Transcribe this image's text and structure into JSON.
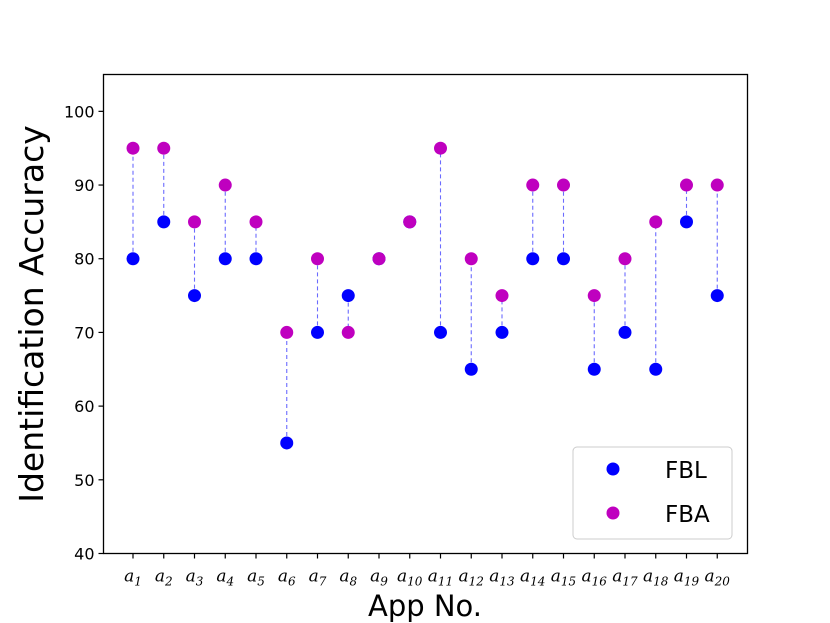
{
  "chart_data": {
    "type": "scatter",
    "xlabel": "App No.",
    "ylabel": "Identification Accuracy",
    "ylim": [
      40,
      105
    ],
    "yticks": [
      40,
      50,
      60,
      70,
      80,
      90,
      100
    ],
    "grid": false,
    "legend_position": "bottom-right",
    "categories": [
      {
        "base": "a",
        "sub": "1"
      },
      {
        "base": "a",
        "sub": "2"
      },
      {
        "base": "a",
        "sub": "3"
      },
      {
        "base": "a",
        "sub": "4"
      },
      {
        "base": "a",
        "sub": "5"
      },
      {
        "base": "a",
        "sub": "6"
      },
      {
        "base": "a",
        "sub": "7"
      },
      {
        "base": "a",
        "sub": "8"
      },
      {
        "base": "a",
        "sub": "9"
      },
      {
        "base": "a",
        "sub": "10"
      },
      {
        "base": "a",
        "sub": "11"
      },
      {
        "base": "a",
        "sub": "12"
      },
      {
        "base": "a",
        "sub": "13"
      },
      {
        "base": "a",
        "sub": "14"
      },
      {
        "base": "a",
        "sub": "15"
      },
      {
        "base": "a",
        "sub": "16"
      },
      {
        "base": "a",
        "sub": "17"
      },
      {
        "base": "a",
        "sub": "18"
      },
      {
        "base": "a",
        "sub": "19"
      },
      {
        "base": "a",
        "sub": "20"
      }
    ],
    "series": [
      {
        "name": "FBL",
        "color": "#0000ff",
        "values": [
          80,
          85,
          75,
          80,
          80,
          55,
          70,
          75,
          80,
          85,
          70,
          65,
          70,
          80,
          80,
          65,
          70,
          65,
          85,
          75
        ]
      },
      {
        "name": "FBA",
        "color": "#bf00bf",
        "values": [
          95,
          95,
          85,
          90,
          85,
          70,
          80,
          70,
          80,
          85,
          95,
          80,
          75,
          90,
          90,
          75,
          80,
          85,
          90,
          90
        ]
      }
    ],
    "connector_color": "#6b6bff"
  }
}
